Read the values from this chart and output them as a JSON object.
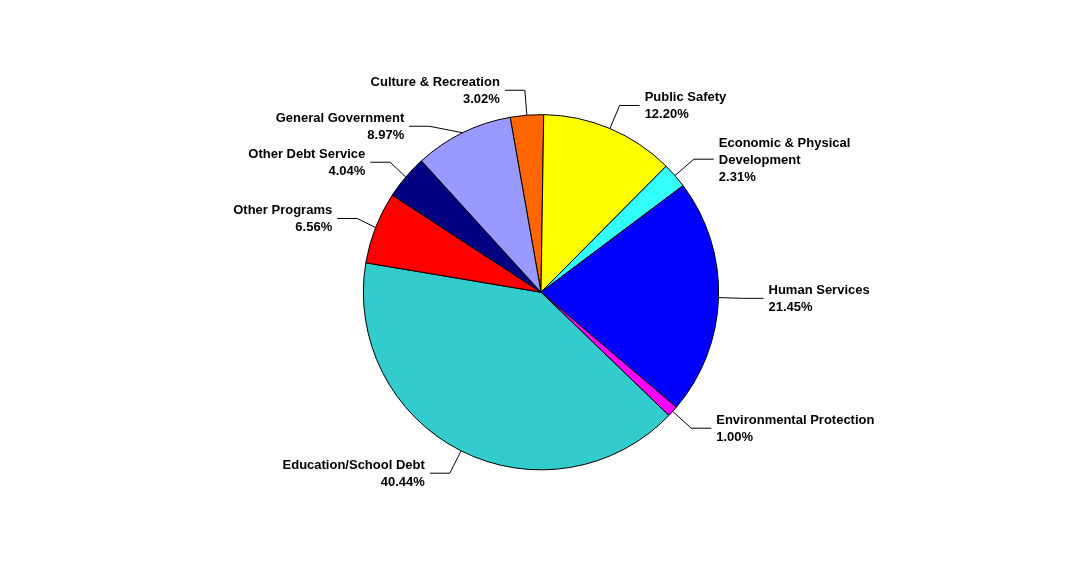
{
  "chart_data": {
    "type": "pie",
    "categories": [
      "Culture & Recreation",
      "Public Safety",
      "Economic & Physical Development",
      "Human Services",
      "Environmental Protection",
      "Education/School Debt",
      "Other Programs",
      "Other Debt Service",
      "General Government"
    ],
    "values": [
      3.02,
      12.2,
      2.31,
      21.45,
      1.0,
      40.44,
      6.56,
      4.04,
      8.97
    ],
    "value_labels": [
      "3.02%",
      "12.20%",
      "2.31%",
      "21.45%",
      "1.00%",
      "40.44%",
      "6.56%",
      "4.04%",
      "8.97%"
    ],
    "colors": [
      "#ff6600",
      "#ffff00",
      "#33ffff",
      "#0000ff",
      "#ff00ff",
      "#33cccc",
      "#ff0000",
      "#000080",
      "#9999ff"
    ],
    "legend": false
  }
}
